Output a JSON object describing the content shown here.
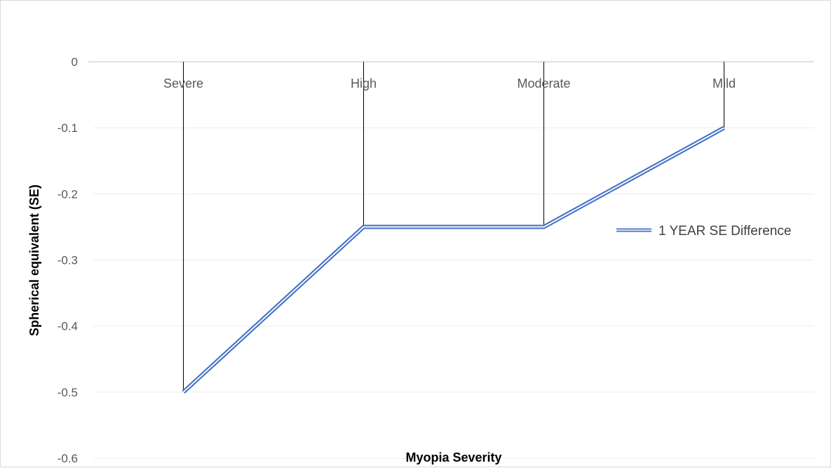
{
  "chart_data": {
    "type": "line",
    "title": "",
    "xlabel": "Myopia Severity",
    "ylabel": "Spherical equivalent (SE)",
    "categories": [
      "Severe",
      "High",
      "Moderate",
      "Mild"
    ],
    "series": [
      {
        "name": "1 YEAR SE Difference",
        "values": [
          -0.5,
          -0.25,
          -0.25,
          -0.1
        ],
        "color": "#4472c4"
      }
    ],
    "ylim": [
      -0.6,
      0
    ],
    "yticks": [
      0,
      -0.1,
      -0.2,
      -0.3,
      -0.4,
      -0.5,
      -0.6
    ],
    "ytick_labels": [
      "0",
      "-0.1",
      "-0.2",
      "-0.3",
      "-0.4",
      "-0.5",
      "-0.6"
    ],
    "grid": true,
    "drop_lines": true,
    "category_labels_position": "top",
    "legend_position": "right"
  }
}
